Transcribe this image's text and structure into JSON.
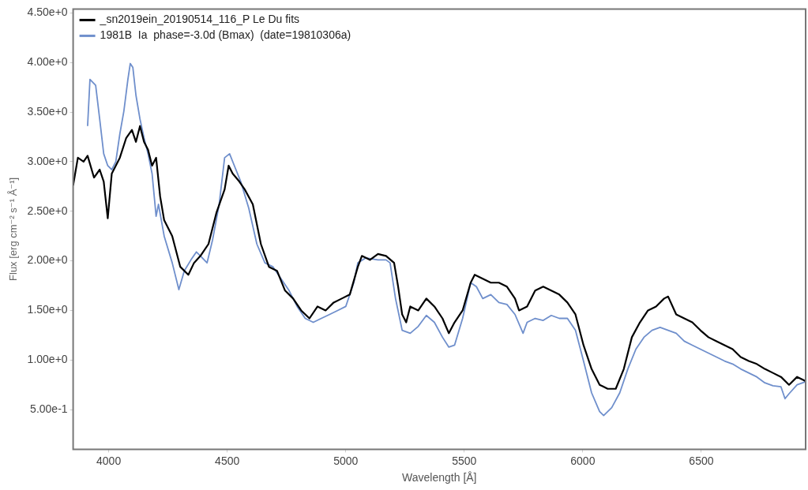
{
  "chart_data": {
    "type": "line",
    "xlabel": "Wavelength [Å]",
    "ylabel": "Flux [erg cm⁻² s⁻¹ Å⁻¹]",
    "xlim": [
      3850,
      6940
    ],
    "ylim": [
      0.1,
      4.54
    ],
    "xticks": [
      4000,
      4500,
      5000,
      5500,
      6000,
      6500
    ],
    "yticks": [
      {
        "value": 0.5,
        "label": "5.00e-1"
      },
      {
        "value": 1,
        "label": "1.00e+0"
      },
      {
        "value": 1.5,
        "label": "1.50e+0"
      },
      {
        "value": 2,
        "label": "2.00e+0"
      },
      {
        "value": 2.5,
        "label": "2.50e+0"
      },
      {
        "value": 3,
        "label": "3.00e+0"
      },
      {
        "value": 3.5,
        "label": "3.50e+0"
      },
      {
        "value": 4,
        "label": "4.00e+0"
      },
      {
        "value": 4.5,
        "label": "4.50e+0"
      }
    ],
    "legend": "top left",
    "marker": "none",
    "line_style": "solid",
    "series": [
      {
        "name": "_sn2019ein_20190514_116_P Le Du fits",
        "color": "#000000",
        "x": [
          3850,
          3870,
          3894,
          3911,
          3938,
          3962,
          3979,
          3996,
          4013,
          4047,
          4074,
          4098,
          4115,
          4132,
          4149,
          4166,
          4183,
          4200,
          4217,
          4234,
          4268,
          4302,
          4336,
          4360,
          4387,
          4421,
          4455,
          4489,
          4506,
          4523,
          4551,
          4574,
          4608,
          4642,
          4676,
          4710,
          4744,
          4778,
          4812,
          4847,
          4881,
          4915,
          4949,
          4983,
          5017,
          5051,
          5068,
          5102,
          5136,
          5170,
          5204,
          5221,
          5238,
          5255,
          5272,
          5306,
          5340,
          5374,
          5408,
          5435,
          5459,
          5493,
          5527,
          5544,
          5578,
          5612,
          5646,
          5680,
          5714,
          5731,
          5765,
          5799,
          5833,
          5867,
          5901,
          5935,
          5969,
          6003,
          6037,
          6071,
          6105,
          6139,
          6173,
          6207,
          6241,
          6275,
          6309,
          6343,
          6360,
          6394,
          6428,
          6462,
          6496,
          6530,
          6564,
          6598,
          6632,
          6666,
          6700,
          6734,
          6768,
          6802,
          6836,
          6870,
          6904,
          6938
        ],
        "values": [
          2.76,
          3.04,
          3.0,
          3.06,
          2.84,
          2.92,
          2.8,
          2.43,
          2.88,
          3.04,
          3.24,
          3.32,
          3.2,
          3.36,
          3.2,
          3.12,
          2.96,
          3.04,
          2.65,
          2.41,
          2.25,
          1.94,
          1.86,
          1.98,
          2.05,
          2.17,
          2.49,
          2.72,
          2.96,
          2.88,
          2.8,
          2.72,
          2.57,
          2.17,
          1.94,
          1.9,
          1.7,
          1.62,
          1.5,
          1.42,
          1.54,
          1.5,
          1.58,
          1.62,
          1.66,
          1.94,
          2.05,
          2.01,
          2.07,
          2.05,
          1.98,
          1.74,
          1.46,
          1.38,
          1.54,
          1.5,
          1.62,
          1.54,
          1.42,
          1.27,
          1.38,
          1.5,
          1.78,
          1.86,
          1.82,
          1.78,
          1.78,
          1.74,
          1.62,
          1.5,
          1.54,
          1.7,
          1.74,
          1.7,
          1.66,
          1.58,
          1.46,
          1.15,
          0.91,
          0.75,
          0.71,
          0.71,
          0.91,
          1.23,
          1.38,
          1.5,
          1.54,
          1.62,
          1.64,
          1.46,
          1.42,
          1.38,
          1.3,
          1.23,
          1.19,
          1.15,
          1.11,
          1.03,
          0.99,
          0.96,
          0.91,
          0.87,
          0.83,
          0.75,
          0.83,
          0.79
        ]
      },
      {
        "name": "1981B  Ia  phase=-3.0d (Bmax)  (date=19810306a)",
        "color": "#6f8fcc",
        "x": [
          3911,
          3921,
          3945,
          3962,
          3979,
          3996,
          4013,
          4030,
          4047,
          4064,
          4081,
          4091,
          4102,
          4115,
          4132,
          4149,
          4166,
          4183,
          4200,
          4210,
          4234,
          4268,
          4296,
          4319,
          4347,
          4370,
          4387,
          4415,
          4438,
          4466,
          4489,
          4510,
          4530,
          4557,
          4591,
          4625,
          4659,
          4693,
          4727,
          4761,
          4795,
          4829,
          4863,
          4897,
          4932,
          4966,
          5000,
          5034,
          5051,
          5085,
          5136,
          5170,
          5187,
          5210,
          5238,
          5272,
          5306,
          5340,
          5374,
          5408,
          5435,
          5459,
          5493,
          5527,
          5551,
          5578,
          5612,
          5646,
          5680,
          5714,
          5748,
          5765,
          5799,
          5833,
          5867,
          5901,
          5935,
          5969,
          6003,
          6037,
          6071,
          6088,
          6122,
          6156,
          6190,
          6224,
          6258,
          6292,
          6326,
          6360,
          6394,
          6428,
          6462,
          6496,
          6530,
          6564,
          6598,
          6632,
          6666,
          6700,
          6734,
          6768,
          6802,
          6836,
          6853,
          6870,
          6904,
          6938
        ],
        "values": [
          3.36,
          3.83,
          3.77,
          3.43,
          3.08,
          2.96,
          2.92,
          3.0,
          3.28,
          3.51,
          3.83,
          3.99,
          3.95,
          3.67,
          3.43,
          3.24,
          3.08,
          2.88,
          2.45,
          2.57,
          2.25,
          1.98,
          1.71,
          1.9,
          2.01,
          2.09,
          2.05,
          1.98,
          2.21,
          2.57,
          3.04,
          3.08,
          2.96,
          2.8,
          2.53,
          2.17,
          1.98,
          1.94,
          1.82,
          1.7,
          1.54,
          1.42,
          1.38,
          1.42,
          1.46,
          1.5,
          1.54,
          1.78,
          1.98,
          2.03,
          2.01,
          2.01,
          1.98,
          1.62,
          1.3,
          1.27,
          1.34,
          1.45,
          1.38,
          1.23,
          1.13,
          1.15,
          1.42,
          1.78,
          1.74,
          1.62,
          1.66,
          1.58,
          1.56,
          1.46,
          1.27,
          1.38,
          1.42,
          1.4,
          1.45,
          1.42,
          1.42,
          1.3,
          0.99,
          0.67,
          0.48,
          0.44,
          0.52,
          0.67,
          0.91,
          1.11,
          1.23,
          1.3,
          1.33,
          1.3,
          1.27,
          1.19,
          1.15,
          1.11,
          1.07,
          1.03,
          0.99,
          0.96,
          0.91,
          0.87,
          0.83,
          0.77,
          0.74,
          0.73,
          0.61,
          0.66,
          0.75,
          0.78
        ]
      }
    ]
  }
}
